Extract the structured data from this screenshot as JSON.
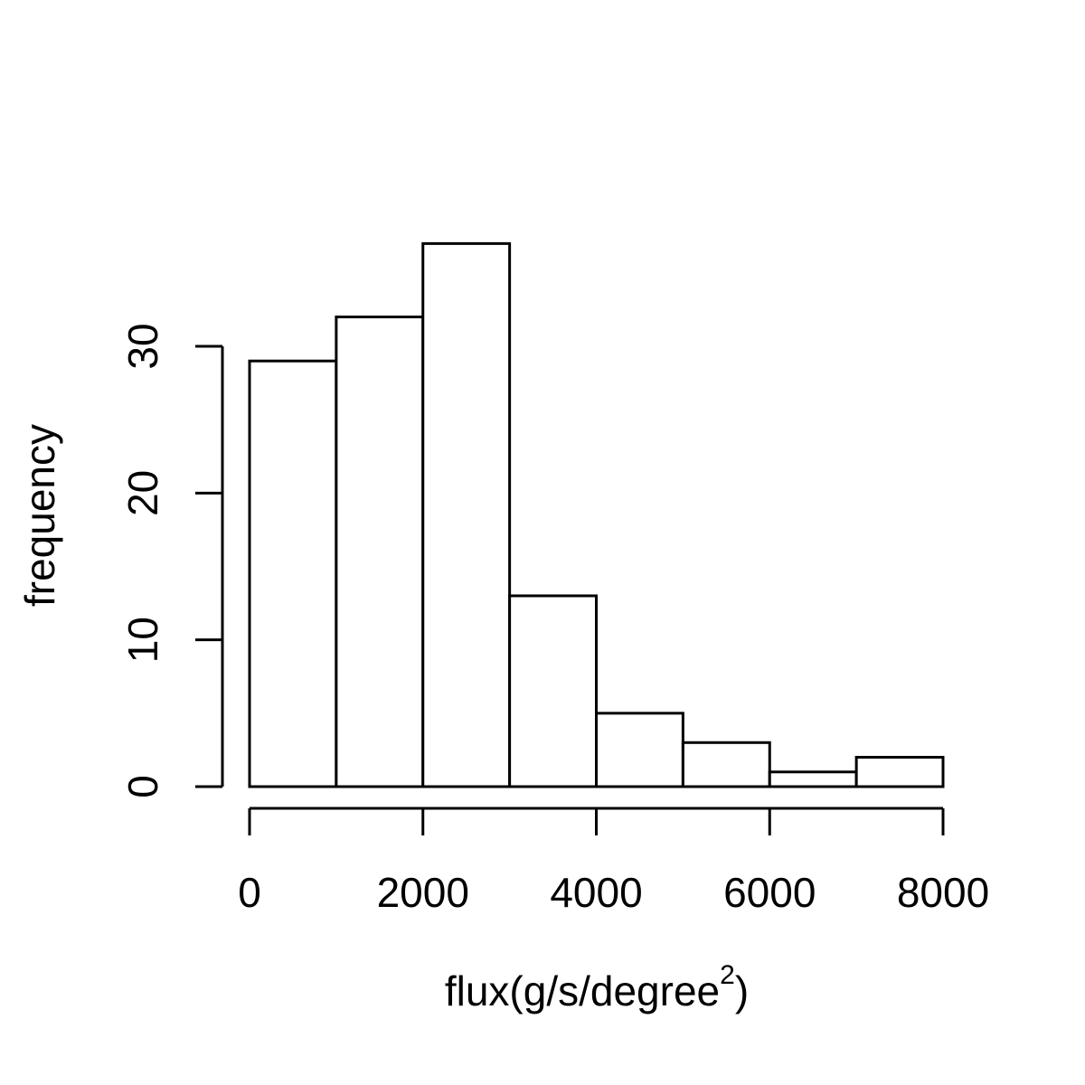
{
  "chart_data": {
    "type": "bar",
    "subtype": "histogram",
    "bins": [
      {
        "start": 0,
        "end": 1000,
        "count": 29
      },
      {
        "start": 1000,
        "end": 2000,
        "count": 32
      },
      {
        "start": 2000,
        "end": 3000,
        "count": 37
      },
      {
        "start": 3000,
        "end": 4000,
        "count": 13
      },
      {
        "start": 4000,
        "end": 5000,
        "count": 5
      },
      {
        "start": 5000,
        "end": 6000,
        "count": 3
      },
      {
        "start": 6000,
        "end": 7000,
        "count": 1
      },
      {
        "start": 7000,
        "end": 8000,
        "count": 2
      }
    ],
    "xlabel": {
      "base": "flux(g/s/degree",
      "superscript": "2",
      "suffix": ")"
    },
    "ylabel": "frequency",
    "xlim": [
      0,
      8000
    ],
    "ylim": [
      0,
      37
    ],
    "xticks": [
      "0",
      "2000",
      "4000",
      "6000",
      "8000"
    ],
    "xtick_values": [
      0,
      2000,
      4000,
      6000,
      8000
    ],
    "yticks": [
      "0",
      "10",
      "20",
      "30"
    ],
    "ytick_values": [
      0,
      10,
      20,
      30
    ],
    "grid": false,
    "legend": "none",
    "colors": {
      "bar_fill": "#ffffff",
      "bar_stroke": "#000000"
    }
  }
}
